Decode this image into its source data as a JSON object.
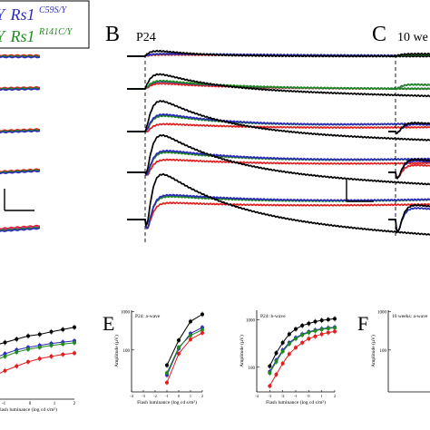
{
  "colors": {
    "black": "#000000",
    "blue": "#2c2cb8",
    "green": "#1f8a1f",
    "red": "#e02020",
    "magenta": "#d0309a"
  },
  "legend": {
    "row1_prefix": "Y",
    "row1_gene": "Rs1",
    "row1_sup": "C59S/Y",
    "row2_prefix": "Y",
    "row2_gene": "Rs1",
    "row2_sup": "R141C/Y"
  },
  "panels": {
    "B": {
      "letter": "B",
      "title": "P24"
    },
    "C": {
      "letter": "C",
      "title": "10 we"
    },
    "E": {
      "letter": "E"
    },
    "F": {
      "letter": "F"
    }
  },
  "chart_data": [
    {
      "id": "D-partial-bwave",
      "type": "line",
      "xlabel": "Flash luminance (log cd s/m²)",
      "x": [
        -3.5,
        -3,
        -2.5,
        -2,
        -1.5,
        -1,
        -0.5,
        0,
        0.5
      ],
      "tick_labels_x": [
        "-1",
        "0",
        "1",
        "2"
      ],
      "series": [
        {
          "color": "black",
          "values": [
            195,
            205,
            215,
            225,
            235,
            240,
            248,
            255,
            262
          ]
        },
        {
          "color": "blue",
          "values": [
            150,
            165,
            180,
            192,
            200,
            206,
            212,
            216,
            220
          ]
        },
        {
          "color": "green",
          "values": [
            140,
            158,
            172,
            185,
            194,
            200,
            206,
            210,
            214
          ]
        },
        {
          "color": "red",
          "values": [
            95,
            110,
            128,
            142,
            155,
            165,
            172,
            178,
            182
          ]
        }
      ]
    },
    {
      "id": "E-awave",
      "type": "line",
      "title": "P24: a-wave",
      "xlabel": "Flash luminance (log cd s/m²)",
      "ylabel": "Amplitude (µV)",
      "y_ticks": [
        "1000",
        "100"
      ],
      "x_ticks": [
        "-4",
        "-3",
        "-2",
        "-1",
        "0",
        "1",
        "2"
      ],
      "x": [
        -1,
        0,
        1,
        2
      ],
      "series": [
        {
          "color": "black",
          "values": [
            40,
            180,
            560,
            860
          ]
        },
        {
          "color": "blue",
          "values": [
            22,
            110,
            270,
            390
          ]
        },
        {
          "color": "green",
          "values": [
            25,
            118,
            240,
            340
          ]
        },
        {
          "color": "red",
          "values": [
            14,
            80,
            190,
            280
          ]
        }
      ]
    },
    {
      "id": "E-bwave",
      "type": "line",
      "title": "P24: b-wave",
      "xlabel": "Flash luminance (log cd s/m²)",
      "ylabel": "Amplitude (µV)",
      "y_ticks": [
        "1000",
        "100"
      ],
      "x_ticks": [
        "-4",
        "-3",
        "-2",
        "-1",
        "0",
        "1",
        "2"
      ],
      "x": [
        -3,
        -2.5,
        -2,
        -1.5,
        -1,
        -0.5,
        0,
        0.5,
        1,
        1.5,
        2
      ],
      "series": [
        {
          "color": "black",
          "values": [
            105,
            200,
            330,
            500,
            640,
            760,
            840,
            920,
            980,
            1020,
            1060
          ]
        },
        {
          "color": "blue",
          "values": [
            80,
            140,
            230,
            330,
            420,
            500,
            560,
            610,
            650,
            680,
            700
          ]
        },
        {
          "color": "green",
          "values": [
            75,
            130,
            215,
            310,
            400,
            480,
            540,
            590,
            630,
            660,
            680
          ]
        },
        {
          "color": "red",
          "values": [
            40,
            70,
            120,
            190,
            260,
            330,
            400,
            450,
            500,
            540,
            570
          ]
        }
      ]
    },
    {
      "id": "F-partial",
      "type": "line",
      "title": "10 weeks: a-wave",
      "ylabel": "Amplitude (µV)",
      "y_ticks": [
        "1000",
        "100"
      ],
      "series": []
    }
  ]
}
